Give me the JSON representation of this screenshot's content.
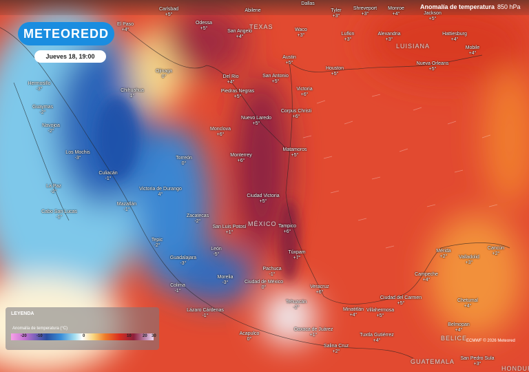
{
  "header": {
    "logo": "METEOREDD",
    "datetime": "Jueves 18, 19:00",
    "parameter": "Anomalía de temperatura",
    "level": "850 hPa"
  },
  "legend": {
    "title": "LEYENDA",
    "unit_label": "Anomalía de temperatura (°C)",
    "ticks": [
      "-20",
      "-10",
      "0",
      "10",
      "20",
      "30"
    ]
  },
  "credit": "ECMWF © 2026 Meteored",
  "regions": [
    "TEXAS",
    "LUISIANA",
    "MÉXICO",
    "BELICE",
    "GUATEMALA",
    "HONDURAS"
  ],
  "cities": [
    {
      "name": "Carlsbad",
      "value": "+5°"
    },
    {
      "name": "Abilene",
      "value": ""
    },
    {
      "name": "Dallas",
      "value": ""
    },
    {
      "name": "Tyler",
      "value": "+3°"
    },
    {
      "name": "Shreveport",
      "value": "+3°"
    },
    {
      "name": "Monroe",
      "value": "+4°"
    },
    {
      "name": "Jackson",
      "value": "+5°"
    },
    {
      "name": "El Paso",
      "value": "+4°"
    },
    {
      "name": "Odessa",
      "value": "+5°"
    },
    {
      "name": "San Angelo",
      "value": "+4°"
    },
    {
      "name": "Waco",
      "value": "+3°"
    },
    {
      "name": "Lufkin",
      "value": "+3°"
    },
    {
      "name": "Alexandria",
      "value": "+3°"
    },
    {
      "name": "Hattiesburg",
      "value": "+4°"
    },
    {
      "name": "Mobile",
      "value": "+4°"
    },
    {
      "name": "Hermosillo",
      "value": "-3°"
    },
    {
      "name": "Chihuahua",
      "value": "1°"
    },
    {
      "name": "Ojinaga",
      "value": "0°"
    },
    {
      "name": "Del Rio",
      "value": "+4°"
    },
    {
      "name": "San Antonio",
      "value": "+5°"
    },
    {
      "name": "Austin",
      "value": "+5°"
    },
    {
      "name": "Houston",
      "value": "+5°"
    },
    {
      "name": "Nueva Orleans",
      "value": "+5°"
    },
    {
      "name": "Victoria",
      "value": "+6°"
    },
    {
      "name": "Piedras Negras",
      "value": "+5°"
    },
    {
      "name": "Guaymas",
      "value": "-2°"
    },
    {
      "name": "Navojoa",
      "value": "-2°"
    },
    {
      "name": "Nuevo Laredo",
      "value": "+5°"
    },
    {
      "name": "Corpus Christi",
      "value": "+6°"
    },
    {
      "name": "Monclova",
      "value": "+6°"
    },
    {
      "name": "Los Mochis",
      "value": "-3°"
    },
    {
      "name": "Torreón",
      "value": "0°"
    },
    {
      "name": "Monterrey",
      "value": "+6°"
    },
    {
      "name": "Matamoros",
      "value": "+5°"
    },
    {
      "name": "Culiacán",
      "value": "-1°"
    },
    {
      "name": "Victoria de Durango",
      "value": "4°"
    },
    {
      "name": "Ciudad Victoria",
      "value": "+5°"
    },
    {
      "name": "La Paz",
      "value": "-2°"
    },
    {
      "name": "Cabo San Lucas",
      "value": "-1°"
    },
    {
      "name": "Mazatlán",
      "value": "-1°"
    },
    {
      "name": "Zacatecas",
      "value": "-2°"
    },
    {
      "name": "San Luis Potosí",
      "value": "+1°"
    },
    {
      "name": "Tampico",
      "value": "+6°"
    },
    {
      "name": "Tepic",
      "value": "-2°"
    },
    {
      "name": "León",
      "value": "-5°"
    },
    {
      "name": "Guadalajara",
      "value": "-3°"
    },
    {
      "name": "Túxpam",
      "value": "+7°"
    },
    {
      "name": "Mérida",
      "value": "+2°"
    },
    {
      "name": "Valladolid",
      "value": "+3°"
    },
    {
      "name": "Cancún",
      "value": "+2°"
    },
    {
      "name": "Pachuca",
      "value": "-1°"
    },
    {
      "name": "Colima",
      "value": "-1°"
    },
    {
      "name": "Morelia",
      "value": "-3°"
    },
    {
      "name": "Ciudad de México",
      "value": "0°"
    },
    {
      "name": "Veracruz",
      "value": "+6°"
    },
    {
      "name": "Campeche",
      "value": "+4°"
    },
    {
      "name": "Ciudad del Carmen",
      "value": "+5°"
    },
    {
      "name": "Chetumal",
      "value": "+4°"
    },
    {
      "name": "Tehuacán",
      "value": "-2°"
    },
    {
      "name": "Minatitlán",
      "value": "+4°"
    },
    {
      "name": "Villahermosa",
      "value": "+5°"
    },
    {
      "name": "Lázaro Cárdenas",
      "value": "-1°"
    },
    {
      "name": "Belmopan",
      "value": "+4°"
    },
    {
      "name": "Oaxaca de Juárez",
      "value": "+1°"
    },
    {
      "name": "Acapulco",
      "value": "0°"
    },
    {
      "name": "Tuxtla Gutiérrez",
      "value": "+4°"
    },
    {
      "name": "Salina Cruz",
      "value": "+2°"
    },
    {
      "name": "San Pedro Sula",
      "value": "+3°"
    }
  ]
}
